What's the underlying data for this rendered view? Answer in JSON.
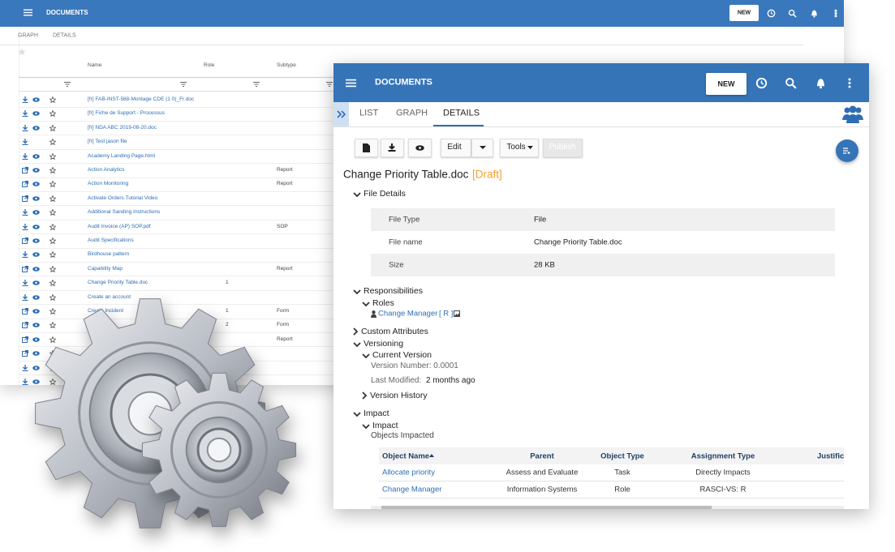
{
  "back_window": {
    "header": {
      "title": "DOCUMENTS",
      "new_button": "NEW"
    },
    "tabs": [
      "GRAPH",
      "DETAILS"
    ],
    "table": {
      "columns": [
        "Name",
        "Role",
        "Subtype"
      ],
      "rows": [
        {
          "name": "[fr] FAB-INST-588-Montage CDE (1 0)_Fr.doc"
        },
        {
          "name": "[fr] Fiche de Support - Processus"
        },
        {
          "name": "[fr] NDA ABC 2019-08-20.doc"
        },
        {
          "name": "[fr] Test jason file"
        },
        {
          "name": "Academy Landing Page.html"
        },
        {
          "name": "Action Analytics",
          "subtype": "Report"
        },
        {
          "name": "Action Monitoring",
          "subtype": "Report"
        },
        {
          "name": "Activate Orders Tutorial Video"
        },
        {
          "name": "Additional Sanding Instructions"
        },
        {
          "name": "Audit Invoice (AP) SOP.pdf",
          "subtype": "SOP"
        },
        {
          "name": "Audit Specifications"
        },
        {
          "name": "Birdhouse pattern"
        },
        {
          "name": "Capability Map",
          "subtype": "Report"
        },
        {
          "name": "Change Priority Table.doc",
          "role": "1"
        },
        {
          "name": "Create an account"
        },
        {
          "name": "Create Incident",
          "role": "1",
          "subtype": "Form"
        },
        {
          "role": "2",
          "subtype": "Form"
        },
        {
          "subtype": "Report"
        }
      ]
    }
  },
  "front_window": {
    "header": {
      "title": "DOCUMENTS",
      "new_button": "NEW"
    },
    "tabs": [
      "LIST",
      "GRAPH",
      "DETAILS"
    ],
    "toolbar": {
      "edit": "Edit",
      "tools": "Tools",
      "publish": "Publish"
    },
    "document": {
      "title": "Change Priority Table.doc",
      "status": "[Draft]"
    },
    "file_details": {
      "heading": "File Details",
      "rows": [
        [
          "File Type",
          "File"
        ],
        [
          "File name",
          "Change Priority Table.doc"
        ],
        [
          "Size",
          "28 KB"
        ]
      ]
    },
    "responsibilities": {
      "heading": "Responsibilities",
      "roles_heading": "Roles",
      "role": "Change Manager",
      "role_code": "[ R ]"
    },
    "custom_attributes": {
      "heading": "Custom Attributes"
    },
    "versioning": {
      "heading": "Versioning",
      "current_version": "Current Version",
      "version_number": "Version Number: 0.0001",
      "last_modified_label": "Last Modified:",
      "last_modified": "2 months ago",
      "version_history": "Version History"
    },
    "impact": {
      "heading": "Impact",
      "subheading": "Impact",
      "objects_impacted": "Objects Impacted",
      "table": {
        "columns": [
          "Object Name",
          "Parent",
          "Object Type",
          "Assignment Type",
          "Justifica"
        ],
        "rows": [
          [
            "Allocate priority",
            "Assess and Evaluate",
            "Task",
            "Directly Impacts"
          ],
          [
            "Change Manager",
            "Information Systems",
            "Role",
            "RASCI-VS: R"
          ]
        ]
      }
    }
  }
}
